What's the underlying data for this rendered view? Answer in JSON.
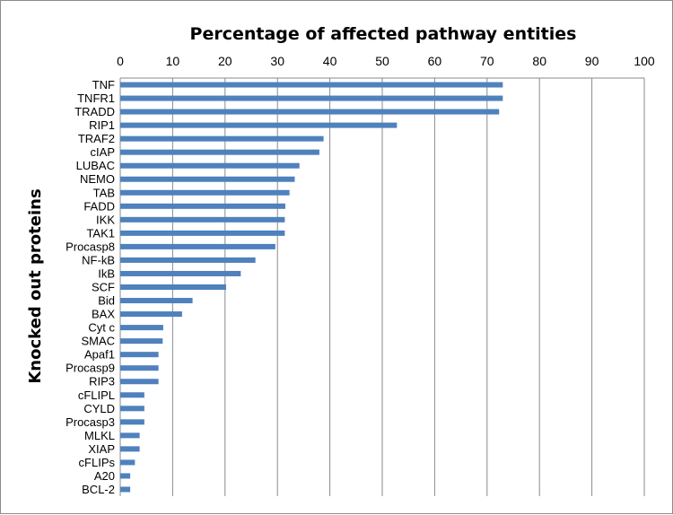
{
  "chart_data": {
    "type": "bar",
    "orientation": "horizontal",
    "title": "Percentage of affected pathway entities",
    "ylabel": "Knocked out proteins",
    "xlabel": "",
    "xlim": [
      0,
      100
    ],
    "xticks": [
      0,
      10,
      20,
      30,
      40,
      50,
      60,
      70,
      80,
      90,
      100
    ],
    "x_axis_position": "top",
    "grid": true,
    "bar_color": "#4f81bd",
    "categories": [
      "TNF",
      "TNFR1",
      "TRADD",
      "RIP1",
      "TRAF2",
      "cIAP",
      "LUBAC",
      "NEMO",
      "TAB",
      "FADD",
      "IKK",
      "TAK1",
      "Procasp8",
      "NF-kB",
      "IkB",
      "SCF",
      "Bid",
      "BAX",
      "Cyt c",
      "SMAC",
      "Apaf1",
      "Procasp9",
      "RIP3",
      "cFLIPL",
      "CYLD",
      "Procasp3",
      "MLKL",
      "XIAP",
      "cFLIPs",
      "A20",
      "BCL-2"
    ],
    "values": [
      73,
      73,
      72.3,
      52.8,
      38.8,
      38,
      34.2,
      33.3,
      32.3,
      31.5,
      31.4,
      31.4,
      29.6,
      25.8,
      23,
      20.2,
      13.8,
      11.8,
      8.2,
      8.1,
      7.3,
      7.3,
      7.3,
      4.6,
      4.6,
      4.6,
      3.7,
      3.7,
      2.8,
      1.9,
      1.9
    ]
  }
}
